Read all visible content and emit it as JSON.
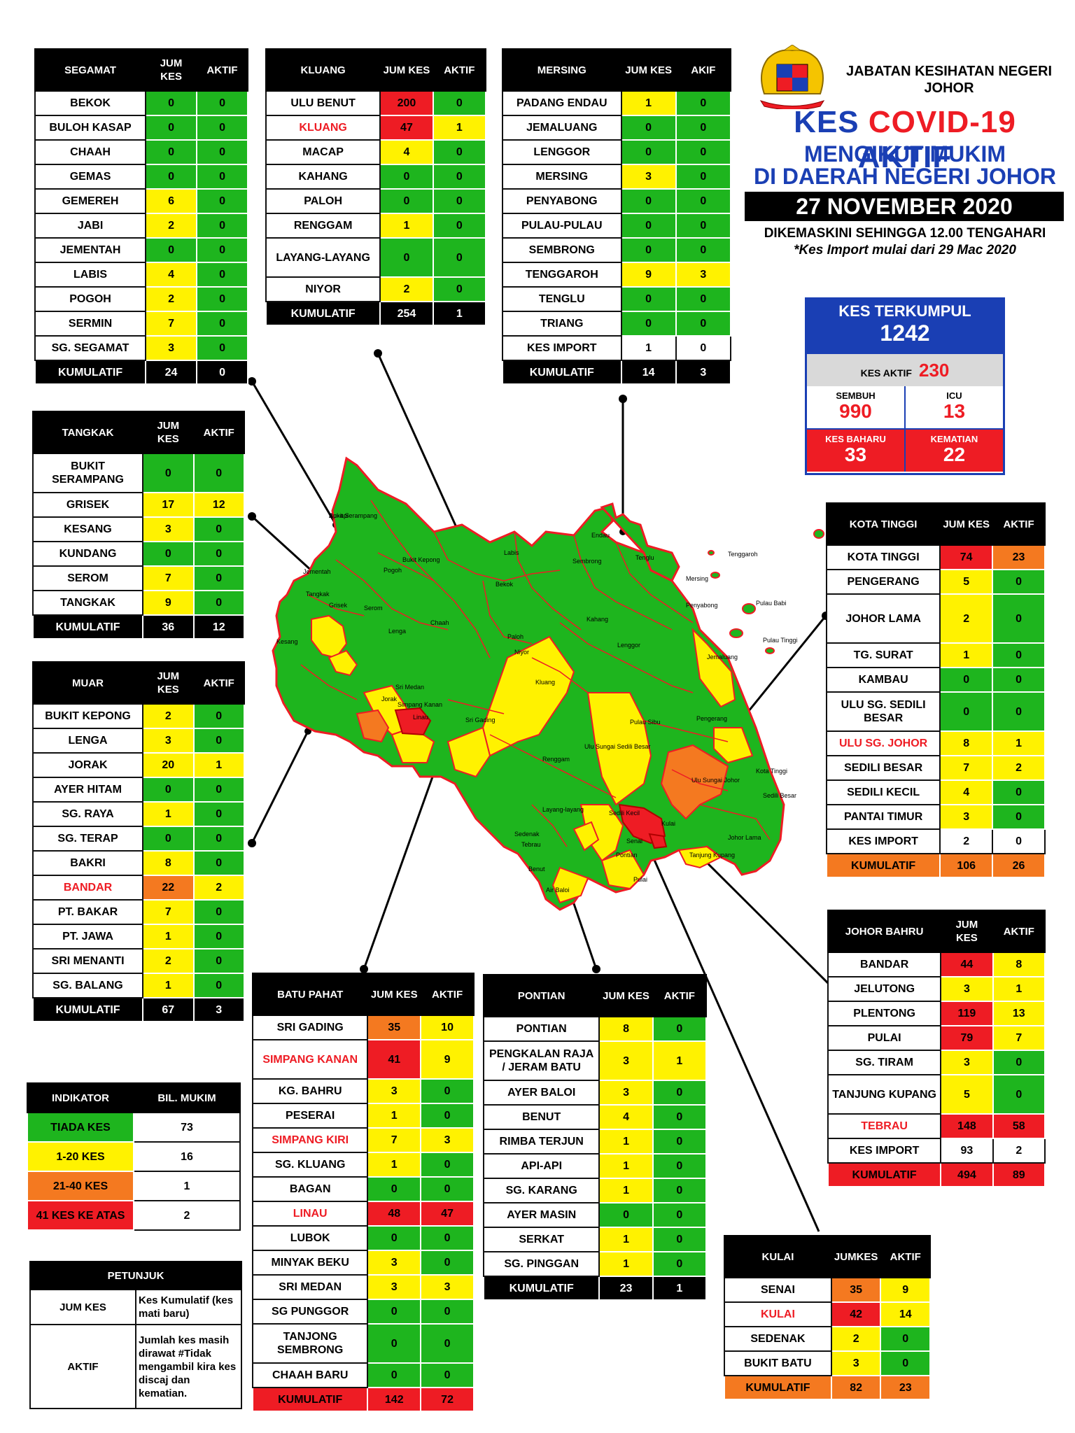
{
  "header": {
    "dept_line1": "JABATAN KESIHATAN NEGERI",
    "dept_line2": "JOHOR",
    "title_prefix": "KES ",
    "title_covid": "COVID-19",
    "title_suffix": " AKTIF",
    "subtitle1": "MENGIKUT MUKIM",
    "subtitle2": "DI DAERAH NEGERI JOHOR",
    "date": "27 NOVEMBER 2020",
    "updated": "DIKEMASKINI SEHINGGA 12.00 TENGAHARI",
    "import_note": "*Kes Import mulai dari 29 Mac 2020"
  },
  "summary": {
    "terkumpul_label": "KES TERKUMPUL",
    "terkumpul_value": "1242",
    "aktif_label": "KES AKTIF",
    "aktif_value": "230",
    "sembuh_label": "SEMBUH",
    "sembuh_value": "990",
    "icu_label": "ICU",
    "icu_value": "13",
    "baharu_label": "KES BAHARU",
    "baharu_value": "33",
    "kematian_label": "KEMATIAN",
    "kematian_value": "22"
  },
  "colors": {
    "green": "#1eb51e",
    "yellow": "#fff200",
    "orange": "#f47920",
    "red": "#ee1c24",
    "blue": "#1a3fb4"
  },
  "districts": {
    "segamat": {
      "h": [
        "SEGAMAT",
        "JUM KES",
        "AKTIF"
      ],
      "rows": [
        [
          "BEKOK",
          "0",
          "0"
        ],
        [
          "BULOH KASAP",
          "0",
          "0"
        ],
        [
          "CHAAH",
          "0",
          "0"
        ],
        [
          "GEMAS",
          "0",
          "0"
        ],
        [
          "GEMEREH",
          "6",
          "0"
        ],
        [
          "JABI",
          "2",
          "0"
        ],
        [
          "JEMENTAH",
          "0",
          "0"
        ],
        [
          "LABIS",
          "4",
          "0"
        ],
        [
          "POGOH",
          "2",
          "0"
        ],
        [
          "SERMIN",
          "7",
          "0"
        ],
        [
          "SG. SEGAMAT",
          "3",
          "0"
        ]
      ],
      "kum": [
        "KUMULATIF",
        "24",
        "0"
      ]
    },
    "kluang": {
      "h": [
        "KLUANG",
        "JUM KES",
        "AKTIF"
      ],
      "rows": [
        [
          "ULU BENUT",
          "200",
          "0"
        ],
        [
          "KLUANG",
          "47",
          "1"
        ],
        [
          "MACAP",
          "4",
          "0"
        ],
        [
          "KAHANG",
          "0",
          "0"
        ],
        [
          "PALOH",
          "0",
          "0"
        ],
        [
          "RENGGAM",
          "1",
          "0"
        ],
        [
          "LAYANG-LAYANG",
          "0",
          "0"
        ],
        [
          "NIYOR",
          "2",
          "0"
        ]
      ],
      "kum": [
        "KUMULATIF",
        "254",
        "1"
      ]
    },
    "mersing": {
      "h": [
        "MERSING",
        "JUM KES",
        "AKIF"
      ],
      "rows": [
        [
          "PADANG ENDAU",
          "1",
          "0"
        ],
        [
          "JEMALUANG",
          "0",
          "0"
        ],
        [
          "LENGGOR",
          "0",
          "0"
        ],
        [
          "MERSING",
          "3",
          "0"
        ],
        [
          "PENYABONG",
          "0",
          "0"
        ],
        [
          "PULAU-PULAU",
          "0",
          "0"
        ],
        [
          "SEMBRONG",
          "0",
          "0"
        ],
        [
          "TENGGAROH",
          "9",
          "3"
        ],
        [
          "TENGLU",
          "0",
          "0"
        ],
        [
          "TRIANG",
          "0",
          "0"
        ],
        [
          "KES IMPORT",
          "1",
          "0"
        ]
      ],
      "kum": [
        "KUMULATIF",
        "14",
        "3"
      ]
    },
    "tangkak": {
      "h": [
        "TANGKAK",
        "JUM KES",
        "AKTIF"
      ],
      "rows": [
        [
          "BUKIT SERAMPANG",
          "0",
          "0"
        ],
        [
          "GRISEK",
          "17",
          "12"
        ],
        [
          "KESANG",
          "3",
          "0"
        ],
        [
          "KUNDANG",
          "0",
          "0"
        ],
        [
          "SEROM",
          "7",
          "0"
        ],
        [
          "TANGKAK",
          "9",
          "0"
        ]
      ],
      "kum": [
        "KUMULATIF",
        "36",
        "12"
      ]
    },
    "muar": {
      "h": [
        "MUAR",
        "JUM KES",
        "AKTIF"
      ],
      "rows": [
        [
          "BUKIT KEPONG",
          "2",
          "0"
        ],
        [
          "LENGA",
          "3",
          "0"
        ],
        [
          "JORAK",
          "20",
          "1"
        ],
        [
          "AYER HITAM",
          "0",
          "0"
        ],
        [
          "SG. RAYA",
          "1",
          "0"
        ],
        [
          "SG. TERAP",
          "0",
          "0"
        ],
        [
          "BAKRI",
          "8",
          "0"
        ],
        [
          "BANDAR",
          "22",
          "2"
        ],
        [
          "PT. BAKAR",
          "7",
          "0"
        ],
        [
          "PT. JAWA",
          "1",
          "0"
        ],
        [
          "SRI MENANTI",
          "2",
          "0"
        ],
        [
          "SG. BALANG",
          "1",
          "0"
        ]
      ],
      "kum": [
        "KUMULATIF",
        "67",
        "3"
      ]
    },
    "kota_tinggi": {
      "h": [
        "KOTA TINGGI",
        "JUM KES",
        "AKTIF"
      ],
      "rows": [
        [
          "KOTA TINGGI",
          "74",
          "23"
        ],
        [
          "PENGERANG",
          "5",
          "0"
        ],
        [
          "JOHOR LAMA",
          "2",
          "0"
        ],
        [
          "TG. SURAT",
          "1",
          "0"
        ],
        [
          "KAMBAU",
          "0",
          "0"
        ],
        [
          "ULU SG. SEDILI BESAR",
          "0",
          "0"
        ],
        [
          "ULU SG. JOHOR",
          "8",
          "1"
        ],
        [
          "SEDILI BESAR",
          "7",
          "2"
        ],
        [
          "SEDILI KECIL",
          "4",
          "0"
        ],
        [
          "PANTAI TIMUR",
          "3",
          "0"
        ],
        [
          "KES IMPORT",
          "2",
          "0"
        ]
      ],
      "kum": [
        "KUMULATIF",
        "106",
        "26"
      ]
    },
    "johor_bahru": {
      "h": [
        "JOHOR BAHRU",
        "JUM KES",
        "AKTIF"
      ],
      "rows": [
        [
          "BANDAR",
          "44",
          "8"
        ],
        [
          "JELUTONG",
          "3",
          "1"
        ],
        [
          "PLENTONG",
          "119",
          "13"
        ],
        [
          "PULAI",
          "79",
          "7"
        ],
        [
          "SG. TIRAM",
          "3",
          "0"
        ],
        [
          "TANJUNG KUPANG",
          "5",
          "0"
        ],
        [
          "TEBRAU",
          "148",
          "58"
        ],
        [
          "KES IMPORT",
          "93",
          "2"
        ]
      ],
      "kum": [
        "KUMULATIF",
        "494",
        "89"
      ]
    },
    "batu_pahat": {
      "h": [
        "BATU PAHAT",
        "JUM KES",
        "AKTIF"
      ],
      "rows": [
        [
          "SRI GADING",
          "35",
          "10"
        ],
        [
          "SIMPANG KANAN",
          "41",
          "9"
        ],
        [
          "KG. BAHRU",
          "3",
          "0"
        ],
        [
          "PESERAI",
          "1",
          "0"
        ],
        [
          "SIMPANG KIRI",
          "7",
          "3"
        ],
        [
          "SG. KLUANG",
          "1",
          "0"
        ],
        [
          "BAGAN",
          "0",
          "0"
        ],
        [
          "LINAU",
          "48",
          "47"
        ],
        [
          "LUBOK",
          "0",
          "0"
        ],
        [
          "MINYAK BEKU",
          "3",
          "0"
        ],
        [
          "SRI MEDAN",
          "3",
          "3"
        ],
        [
          "SG PUNGGOR",
          "0",
          "0"
        ],
        [
          "TANJONG SEMBRONG",
          "0",
          "0"
        ],
        [
          "CHAAH BARU",
          "0",
          "0"
        ]
      ],
      "kum": [
        "KUMULATIF",
        "142",
        "72"
      ]
    },
    "pontian": {
      "h": [
        "PONTIAN",
        "JUM KES",
        "AKTIF"
      ],
      "rows": [
        [
          "PONTIAN",
          "8",
          "0"
        ],
        [
          "PENGKALAN RAJA / JERAM BATU",
          "3",
          "1"
        ],
        [
          "AYER BALOI",
          "3",
          "0"
        ],
        [
          "BENUT",
          "4",
          "0"
        ],
        [
          "RIMBA TERJUN",
          "1",
          "0"
        ],
        [
          "API-API",
          "1",
          "0"
        ],
        [
          "SG. KARANG",
          "1",
          "0"
        ],
        [
          "AYER MASIN",
          "0",
          "0"
        ],
        [
          "SERKAT",
          "1",
          "0"
        ],
        [
          "SG. PINGGAN",
          "1",
          "0"
        ]
      ],
      "kum": [
        "KUMULATIF",
        "23",
        "1"
      ]
    },
    "kulai": {
      "h": [
        "KULAI",
        "JUMKES",
        "AKTIF"
      ],
      "rows": [
        [
          "SENAI",
          "35",
          "9"
        ],
        [
          "KULAI",
          "42",
          "14"
        ],
        [
          "SEDENAK",
          "2",
          "0"
        ],
        [
          "BUKIT BATU",
          "3",
          "0"
        ]
      ],
      "kum": [
        "KUMULATIF",
        "82",
        "23"
      ]
    }
  },
  "indicator": {
    "h": [
      "INDIKATOR",
      "BIL. MUKIM"
    ],
    "rows": [
      [
        "TIADA KES",
        "73"
      ],
      [
        "1-20 KES",
        "16"
      ],
      [
        "21-40 KES",
        "1"
      ],
      [
        "41 KES KE ATAS",
        "2"
      ]
    ]
  },
  "legend": {
    "title": "PETUNJUK",
    "rows": [
      [
        "JUM KES",
        "Kes Kumulatif (kes mati baru)"
      ],
      [
        "AKTIF",
        "Jumlah kes masih dirawat #Tidak mengambil kira kes discaj dan kematian."
      ]
    ]
  },
  "map_labels": [
    "Bukit Serampang",
    "Grisek",
    "Tangkak",
    "Serom",
    "Kesang",
    "Bukit Kepong",
    "Lenga",
    "Jorak",
    "Sri Medan",
    "Linau",
    "Simpang Kanan",
    "Sri Gading",
    "Kluang",
    "Renggam",
    "Paloh",
    "Niyor",
    "Chaah",
    "Labis",
    "Bekok",
    "Pogoh",
    "Jementah",
    "Endau",
    "Sembrong",
    "Tenglu",
    "Mersing",
    "Kahang",
    "Lenggor",
    "Penyabong",
    "Jemaluang",
    "Tenggaroh",
    "Pulau Babi",
    "Pulau Tinggi",
    "Pulau Sibu",
    "Ulu Sungai Johor",
    "Kota Tinggi",
    "Sedili Besar",
    "Sedili Kecil",
    "Senai",
    "Kulai",
    "Tebrau",
    "Pontian",
    "Pulai",
    "Tanjung Kupang",
    "Johor Lama",
    "Pengerang",
    "Ulu Sungai Sedili Besar",
    "Layang-layang",
    "Sedenak",
    "Benut",
    "Air Baloi",
    "Api-api"
  ]
}
